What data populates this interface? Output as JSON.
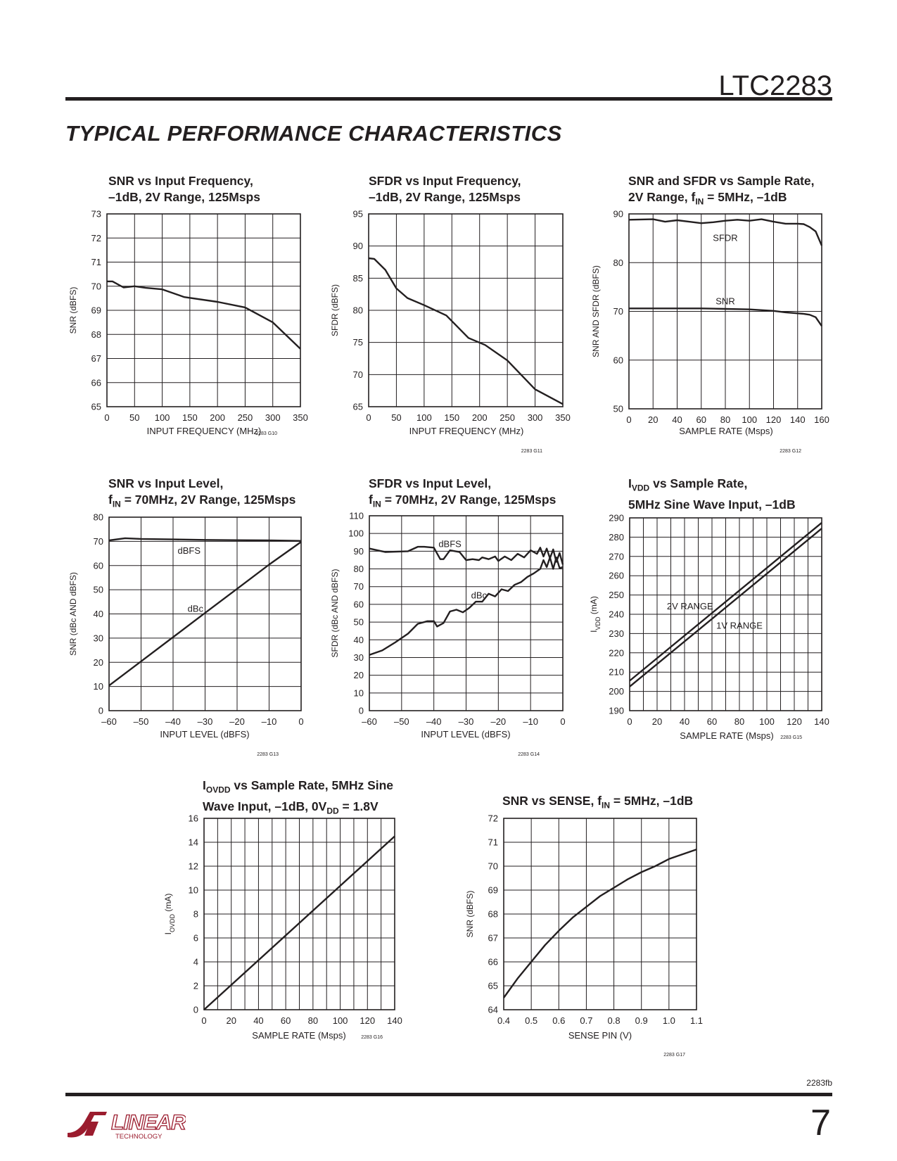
{
  "header": {
    "part_number": "LTC2283",
    "section_title": "TYPICAL PERFORMANCE CHARACTERISTICS"
  },
  "footer": {
    "doc_code": "2283fb",
    "page_number": "7",
    "logo_text": "LINEAR",
    "logo_subtext": "TECHNOLOGY"
  },
  "colors": {
    "ink": "#231f20",
    "logo": "#9b1c2e"
  },
  "chart_data": [
    {
      "id": "g10",
      "type": "line",
      "title_lines": [
        "SNR vs Input Frequency,",
        "–1dB, 2V Range, 125Msps"
      ],
      "xlabel": "INPUT FREQUENCY (MHz)",
      "ylabel": "SNR (dBFS)",
      "xlim": [
        0,
        350
      ],
      "ylim": [
        65,
        73
      ],
      "xticks": [
        0,
        50,
        100,
        150,
        200,
        250,
        300,
        350
      ],
      "yticks": [
        65,
        66,
        67,
        68,
        69,
        70,
        71,
        72,
        73
      ],
      "xgrid": [
        0,
        50,
        100,
        150,
        200,
        250,
        300,
        350
      ],
      "ygrid": [
        65,
        66,
        67,
        68,
        69,
        70,
        71,
        72,
        73
      ],
      "fig_code": "2283 G10",
      "series": [
        {
          "x": [
            0,
            10,
            30,
            50,
            70,
            100,
            140,
            200,
            250,
            300,
            350
          ],
          "y": [
            70.2,
            70.2,
            69.95,
            70.0,
            69.93,
            69.87,
            69.55,
            69.35,
            69.12,
            68.5,
            67.4
          ]
        }
      ],
      "annotations": []
    },
    {
      "id": "g11",
      "type": "line",
      "title_lines": [
        "SFDR vs Input Frequency,",
        "–1dB, 2V Range, 125Msps"
      ],
      "xlabel": "INPUT FREQUENCY (MHz)",
      "ylabel": "SFDR (dBFS)",
      "xlim": [
        0,
        350
      ],
      "ylim": [
        65,
        95
      ],
      "xticks": [
        0,
        50,
        100,
        150,
        200,
        250,
        300,
        350
      ],
      "yticks": [
        65,
        70,
        75,
        80,
        85,
        90,
        95
      ],
      "xgrid": [
        0,
        50,
        100,
        150,
        200,
        250,
        300,
        350
      ],
      "ygrid": [
        65,
        70,
        75,
        80,
        85,
        90,
        95
      ],
      "fig_code": "2283 G11",
      "series": [
        {
          "x": [
            0,
            10,
            30,
            50,
            70,
            100,
            140,
            180,
            210,
            250,
            300,
            350
          ],
          "y": [
            88.1,
            88.0,
            86.3,
            83.4,
            81.9,
            80.8,
            79.2,
            75.7,
            74.6,
            72.2,
            67.7,
            65.4
          ]
        }
      ],
      "annotations": []
    },
    {
      "id": "g12",
      "type": "line",
      "title_lines": [
        "SNR and SFDR vs Sample Rate,",
        "2V Range, f|IN| = 5MHz, –1dB"
      ],
      "xlabel": "SAMPLE RATE (Msps)",
      "ylabel": "SNR AND SFDR (dBFS)",
      "xlim": [
        0,
        160
      ],
      "ylim": [
        50,
        90
      ],
      "xticks": [
        0,
        20,
        40,
        60,
        80,
        100,
        120,
        140,
        160
      ],
      "yticks": [
        50,
        60,
        70,
        80,
        90
      ],
      "xgrid": [
        0,
        20,
        40,
        60,
        80,
        100,
        120,
        140,
        160
      ],
      "ygrid": [
        50,
        60,
        70,
        80,
        90
      ],
      "fig_code": "2283 G12",
      "series": [
        {
          "name": "SFDR",
          "x": [
            0,
            20,
            30,
            40,
            50,
            60,
            70,
            80,
            90,
            100,
            110,
            120,
            130,
            140,
            145,
            150,
            155,
            160
          ],
          "y": [
            88.8,
            88.9,
            88.4,
            88.7,
            88.4,
            88.1,
            88.3,
            88.6,
            88.8,
            88.6,
            88.9,
            88.4,
            88.0,
            88.0,
            87.9,
            87.3,
            86.4,
            83.5
          ]
        },
        {
          "name": "SNR",
          "x": [
            0,
            20,
            40,
            60,
            80,
            100,
            120,
            130,
            140,
            145,
            150,
            155,
            160
          ],
          "y": [
            70.6,
            70.6,
            70.6,
            70.6,
            70.5,
            70.4,
            70.1,
            69.8,
            69.6,
            69.5,
            69.3,
            68.8,
            67.0
          ]
        }
      ],
      "annotations": [
        {
          "text": "SFDR",
          "x": 80,
          "y": 85
        },
        {
          "text": "SNR",
          "x": 80,
          "y": 72
        }
      ]
    },
    {
      "id": "g13",
      "type": "line",
      "title_lines": [
        "SNR vs Input Level,",
        "f|IN| = 70MHz, 2V Range, 125Msps"
      ],
      "xlabel": "INPUT LEVEL (dBFS)",
      "ylabel": "SNR (dBc AND dBFS)",
      "xlim": [
        -60,
        0
      ],
      "ylim": [
        0,
        80
      ],
      "xticks": [
        -60,
        -50,
        -40,
        -30,
        -20,
        -10,
        0
      ],
      "yticks": [
        0,
        10,
        20,
        30,
        40,
        50,
        60,
        70,
        80
      ],
      "xgrid": [
        -60,
        -50,
        -40,
        -30,
        -20,
        -10,
        0
      ],
      "ygrid": [
        0,
        10,
        20,
        30,
        40,
        50,
        60,
        70,
        80
      ],
      "fig_code": "2283 G13",
      "series": [
        {
          "name": "dBFS",
          "x": [
            -60,
            -55,
            -50,
            -40,
            -30,
            -20,
            -10,
            0
          ],
          "y": [
            70.4,
            71.3,
            71.0,
            70.8,
            70.6,
            70.5,
            70.4,
            70.2
          ]
        },
        {
          "name": "dBc",
          "x": [
            -60,
            -50,
            -40,
            -30,
            -20,
            -10,
            0
          ],
          "y": [
            10.4,
            20.4,
            30.4,
            40.4,
            50.4,
            60.4,
            69.8
          ]
        }
      ],
      "annotations": [
        {
          "text": "dBFS",
          "x": -35,
          "y": 66
        },
        {
          "text": "dBc",
          "x": -33,
          "y": 42
        }
      ]
    },
    {
      "id": "g14",
      "type": "line",
      "title_lines": [
        "SFDR vs Input Level,",
        "f|IN| = 70MHz, 2V Range, 125Msps"
      ],
      "xlabel": "INPUT LEVEL (dBFS)",
      "ylabel": "SFDR (dBc AND dBFS)",
      "xlim": [
        -60,
        0
      ],
      "ylim": [
        0,
        110
      ],
      "xticks": [
        -60,
        -50,
        -40,
        -30,
        -20,
        -10,
        0
      ],
      "yticks": [
        0,
        10,
        20,
        30,
        40,
        50,
        60,
        70,
        80,
        90,
        100,
        110
      ],
      "xgrid": [
        -60,
        -50,
        -40,
        -30,
        -20,
        -10,
        0
      ],
      "ygrid": [
        0,
        10,
        20,
        30,
        40,
        50,
        60,
        70,
        80,
        90,
        100,
        110
      ],
      "fig_code": "2283 G14",
      "series": [
        {
          "name": "dBFS",
          "x": [
            -60,
            -55,
            -48,
            -45,
            -43,
            -40,
            -38,
            -37,
            -35,
            -32,
            -30,
            -28,
            -26,
            -25,
            -23,
            -21,
            -20,
            -18,
            -16,
            -14,
            -12,
            -10,
            -8,
            -7,
            -6,
            -5,
            -4,
            -3,
            -2,
            -1,
            0
          ],
          "y": [
            91.5,
            89.5,
            90.0,
            92.5,
            92.5,
            92.0,
            85.5,
            85.5,
            90.5,
            89.5,
            85.0,
            85.5,
            85.0,
            86.5,
            85.5,
            87.0,
            84.5,
            87.0,
            85.0,
            88.5,
            86.5,
            90.5,
            88.5,
            92.0,
            87.0,
            91.5,
            86.0,
            91.0,
            84.0,
            89.0,
            82.5
          ]
        },
        {
          "name": "dBc",
          "x": [
            -60,
            -56,
            -52,
            -48,
            -45,
            -42,
            -40,
            -39,
            -37,
            -35,
            -33,
            -31,
            -29,
            -27,
            -25,
            -23,
            -21,
            -19,
            -17,
            -15,
            -13,
            -11,
            -9,
            -7,
            -6,
            -5,
            -4,
            -3,
            -2,
            -1,
            0
          ],
          "y": [
            31.5,
            34.0,
            38.5,
            43.5,
            49.0,
            50.5,
            50.5,
            47.5,
            49.5,
            56.0,
            57.0,
            55.5,
            58.0,
            61.5,
            61.5,
            66.0,
            64.5,
            68.5,
            67.5,
            71.0,
            72.5,
            75.5,
            77.5,
            80.0,
            85.0,
            81.0,
            86.5,
            80.0,
            86.5,
            80.5,
            81.0
          ]
        }
      ],
      "annotations": [
        {
          "text": "dBFS",
          "x": -35,
          "y": 94
        },
        {
          "text": "dBc",
          "x": -26,
          "y": 65
        }
      ]
    },
    {
      "id": "g15",
      "type": "line",
      "title_lines": [
        "I|VDD| vs Sample Rate,",
        "5MHz Sine Wave Input, –1dB"
      ],
      "xlabel": "SAMPLE RATE (Msps)",
      "ylabel": "I|VDD| (mA)",
      "xlim": [
        0,
        140
      ],
      "ylim": [
        190,
        290
      ],
      "xticks": [
        0,
        20,
        40,
        60,
        80,
        100,
        120,
        140
      ],
      "yticks": [
        190,
        200,
        210,
        220,
        230,
        240,
        250,
        260,
        270,
        280,
        290
      ],
      "xgrid": [
        0,
        10,
        20,
        30,
        40,
        50,
        60,
        70,
        80,
        90,
        100,
        110,
        120,
        130,
        140
      ],
      "ygrid": [
        190,
        200,
        210,
        220,
        230,
        240,
        250,
        260,
        270,
        280,
        290
      ],
      "fig_code": "2283 G15",
      "series": [
        {
          "name": "2V RANGE",
          "x": [
            0,
            140
          ],
          "y": [
            205.5,
            287.5
          ]
        },
        {
          "name": "1V RANGE",
          "x": [
            0,
            140
          ],
          "y": [
            202.5,
            284.5
          ]
        }
      ],
      "annotations": [
        {
          "text": "2V RANGE",
          "x": 44,
          "y": 244
        },
        {
          "text": "1V RANGE",
          "x": 80,
          "y": 234
        }
      ]
    },
    {
      "id": "g16",
      "type": "line",
      "title_lines": [
        "I|OVDD| vs Sample Rate, 5MHz Sine",
        "Wave Input, –1dB, 0V|DD| = 1.8V"
      ],
      "xlabel": "SAMPLE RATE (Msps)",
      "ylabel": "I|OVDD| (mA)",
      "xlim": [
        0,
        140
      ],
      "ylim": [
        0,
        16
      ],
      "xticks": [
        0,
        20,
        40,
        60,
        80,
        100,
        120,
        140
      ],
      "yticks": [
        0,
        2,
        4,
        6,
        8,
        10,
        12,
        14,
        16
      ],
      "xgrid": [
        0,
        10,
        20,
        30,
        40,
        50,
        60,
        70,
        80,
        90,
        100,
        110,
        120,
        130,
        140
      ],
      "ygrid": [
        0,
        2,
        4,
        6,
        8,
        10,
        12,
        14,
        16
      ],
      "fig_code": "2283 G16",
      "series": [
        {
          "x": [
            0,
            140
          ],
          "y": [
            0,
            14.5
          ]
        }
      ],
      "annotations": []
    },
    {
      "id": "g17",
      "type": "line",
      "title_lines": [
        "SNR vs SENSE, f|IN| = 5MHz, –1dB"
      ],
      "xlabel": "SENSE PIN (V)",
      "ylabel": "SNR (dBFS)",
      "xlim": [
        0.4,
        1.1
      ],
      "ylim": [
        64,
        72
      ],
      "xticks": [
        0.4,
        0.5,
        0.6,
        0.7,
        0.8,
        0.9,
        1.0,
        1.1
      ],
      "xticklabels": [
        "0.4",
        "0.5",
        "0.6",
        "0.7",
        "0.8",
        "0.9",
        "1.0",
        "1.1"
      ],
      "yticks": [
        64,
        65,
        66,
        67,
        68,
        69,
        70,
        71,
        72
      ],
      "xgrid": [
        0.4,
        0.5,
        0.6,
        0.7,
        0.8,
        0.9,
        1.0,
        1.1
      ],
      "ygrid": [
        64,
        65,
        66,
        67,
        68,
        69,
        70,
        71,
        72
      ],
      "fig_code": "2283 G17",
      "series": [
        {
          "x": [
            0.4,
            0.45,
            0.5,
            0.55,
            0.6,
            0.65,
            0.7,
            0.75,
            0.8,
            0.85,
            0.9,
            0.95,
            1.0,
            1.05,
            1.1
          ],
          "y": [
            64.5,
            65.3,
            66.0,
            66.7,
            67.3,
            67.85,
            68.3,
            68.75,
            69.1,
            69.45,
            69.75,
            70.0,
            70.3,
            70.5,
            70.7
          ]
        }
      ],
      "annotations": []
    }
  ]
}
